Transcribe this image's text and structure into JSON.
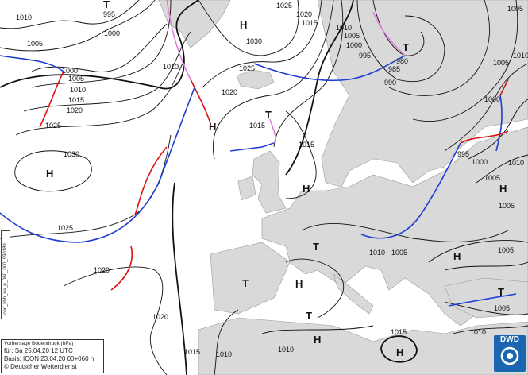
{
  "legend": {
    "title": "Vorhersage Bodendruck (hPa)",
    "valid": "für:  Sa 25.04.20  12 UTC",
    "basis": "Basis: ICON  23.04.20 00+060 h",
    "copyright": "© Deutscher Wetterdienst"
  },
  "sidebar_code": "icon_kbb_na_p_060_000_990189",
  "logo": {
    "text": "DWD",
    "icon": "dwd-swirl-logo"
  },
  "isobar_labels": [
    "1010",
    "1005",
    "995",
    "1000",
    "1000",
    "1005",
    "1010",
    "1015",
    "1020",
    "1025",
    "1030",
    "1025",
    "1020",
    "1020",
    "1015",
    "1010",
    "1010",
    "1015",
    "1030",
    "1025",
    "1020",
    "1015",
    "1010",
    "1005",
    "1000",
    "995",
    "985",
    "990",
    "980",
    "1025",
    "1020",
    "1010",
    "1015",
    "1015",
    "995",
    "1000",
    "1005",
    "1005",
    "1010",
    "1010",
    "1005",
    "1000",
    "1010",
    "1005",
    "1005",
    "1005",
    "1010",
    "1005"
  ],
  "high_labels": [
    "H",
    "H",
    "H",
    "H",
    "H",
    "H",
    "H",
    "H",
    "H"
  ],
  "low_labels": [
    "T",
    "T",
    "T",
    "T",
    "T",
    "T",
    "T"
  ],
  "colors": {
    "land": "#d9d9d9",
    "sea": "#ffffff",
    "isobar": "#111111",
    "cold_front": "#1f3fd0",
    "warm_front": "#e01010",
    "occlusion": "#e080e0"
  }
}
